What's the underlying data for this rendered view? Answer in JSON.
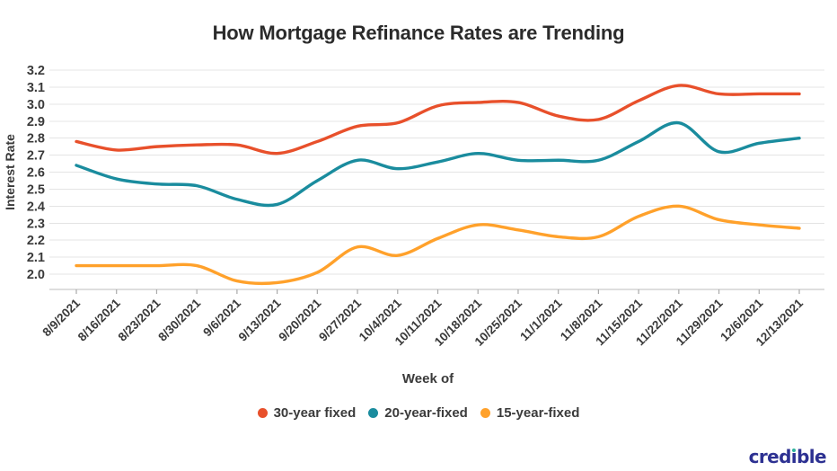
{
  "title": "How Mortgage Refinance Rates are Trending",
  "logo_text": "credible",
  "legend": [
    {
      "label": "30-year fixed",
      "color": "#E8502B"
    },
    {
      "label": "20-year-fixed",
      "color": "#1A8C9E"
    },
    {
      "label": "15-year-fixed",
      "color": "#FFA12B"
    }
  ],
  "chart_data": {
    "type": "line",
    "title": "How Mortgage Refinance Rates are Trending",
    "xlabel": "Week of",
    "ylabel": "Interest Rate",
    "x": [
      "8/9/2021",
      "8/16/2021",
      "8/23/2021",
      "8/30/2021",
      "9/6/2021",
      "9/13/2021",
      "9/20/2021",
      "9/27/2021",
      "10/4/2021",
      "10/11/2021",
      "10/18/2021",
      "10/25/2021",
      "11/1/2021",
      "11/8/2021",
      "11/15/2021",
      "11/22/2021",
      "11/29/2021",
      "12/6/2021",
      "12/13/2021"
    ],
    "yticks": [
      "3.2",
      "3.1",
      "3.0",
      "2.9",
      "2.8",
      "2.7",
      "2.6",
      "2.5",
      "2.4",
      "2.3",
      "2.2",
      "2.1",
      "2.0"
    ],
    "ylim": [
      2.0,
      3.2
    ],
    "grid": true,
    "legend_position": "bottom",
    "series": [
      {
        "name": "30-year fixed",
        "color": "#E8502B",
        "values": [
          2.78,
          2.73,
          2.75,
          2.76,
          2.76,
          2.71,
          2.78,
          2.87,
          2.89,
          2.99,
          3.01,
          3.01,
          2.93,
          2.91,
          3.02,
          3.11,
          3.06,
          3.06,
          3.06
        ]
      },
      {
        "name": "20-year-fixed",
        "color": "#1A8C9E",
        "values": [
          2.64,
          2.56,
          2.53,
          2.52,
          2.44,
          2.41,
          2.55,
          2.67,
          2.62,
          2.66,
          2.71,
          2.67,
          2.67,
          2.67,
          2.78,
          2.89,
          2.72,
          2.77,
          2.8
        ]
      },
      {
        "name": "15-year-fixed",
        "color": "#FFA12B",
        "values": [
          2.05,
          2.05,
          2.05,
          2.05,
          1.96,
          1.95,
          2.01,
          2.16,
          2.11,
          2.21,
          2.29,
          2.26,
          2.22,
          2.22,
          2.34,
          2.4,
          2.32,
          2.29,
          2.27
        ]
      }
    ],
    "colors": {
      "gridline": "#E4E4E4",
      "axis_line": "#C9C9C9",
      "tick_mark": "#AAAAAA",
      "tick_text": "#3A3A3A",
      "title_text": "#2B2B2B"
    }
  }
}
